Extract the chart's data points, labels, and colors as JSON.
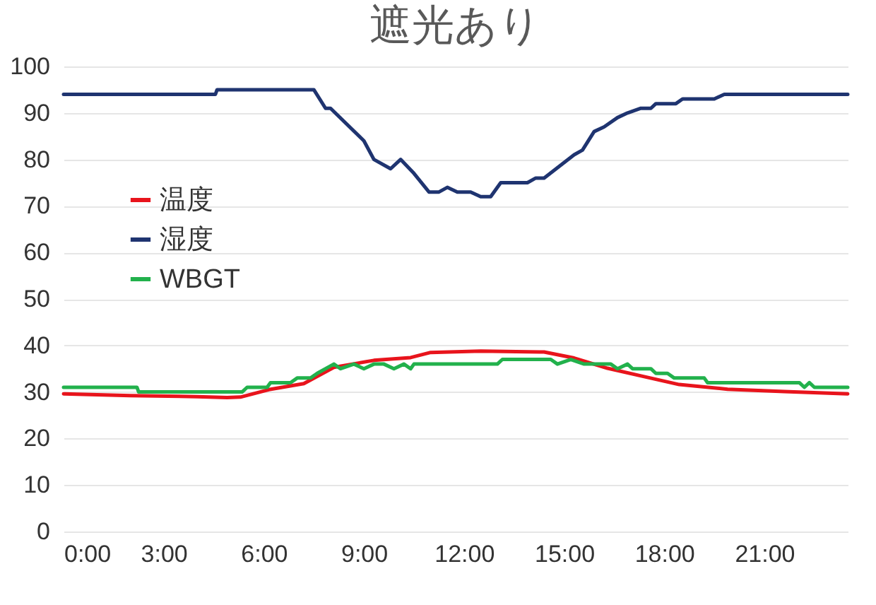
{
  "chart_data": {
    "type": "line",
    "title": "遮光あり",
    "xlim": [
      0,
      23.5
    ],
    "ylim": [
      0,
      100
    ],
    "xticks": [
      {
        "value": 0,
        "label": "0:00"
      },
      {
        "value": 3,
        "label": "3:00"
      },
      {
        "value": 6,
        "label": "6:00"
      },
      {
        "value": 9,
        "label": "9:00"
      },
      {
        "value": 12,
        "label": "12:00"
      },
      {
        "value": 15,
        "label": "15:00"
      },
      {
        "value": 18,
        "label": "18:00"
      },
      {
        "value": 21,
        "label": "21:00"
      }
    ],
    "yticks": [
      0,
      10,
      20,
      30,
      40,
      50,
      60,
      70,
      80,
      90,
      100
    ],
    "grid": "y",
    "legend": "top left",
    "marker": "none",
    "line_style": "solid",
    "series": [
      {
        "name": "温度",
        "color": "#e8141c",
        "x": [
          0,
          2,
          4,
          4.9,
          5.3,
          6.15,
          7.2,
          8.1,
          9.3,
          10.4,
          11,
          12.5,
          14.4,
          15.3,
          16.3,
          17.4,
          18.45,
          19.9,
          21.6,
          23.5
        ],
        "values": [
          29.6,
          29.2,
          29,
          28.8,
          28.9,
          30.5,
          31.8,
          35.3,
          36.8,
          37.4,
          38.5,
          38.8,
          38.6,
          37.3,
          35.1,
          33.3,
          31.6,
          30.6,
          30.1,
          29.6
        ]
      },
      {
        "name": "湿度",
        "color": "#1f3470",
        "x": [
          0,
          4.55,
          4.6,
          7.5,
          7.85,
          8,
          9,
          9.3,
          9.8,
          10.1,
          10.5,
          10.95,
          11.25,
          11.5,
          11.8,
          12.2,
          12.5,
          12.8,
          13.1,
          13.9,
          14.15,
          14.4,
          15.3,
          15.55,
          15.9,
          16.2,
          16.6,
          16.9,
          17.3,
          17.6,
          17.75,
          18.35,
          18.55,
          19.5,
          19.8,
          23.5
        ],
        "values": [
          94,
          94,
          95,
          95,
          91,
          91,
          84,
          80,
          78,
          80,
          77,
          73,
          73,
          74,
          73,
          73,
          72,
          72,
          75,
          75,
          76,
          76,
          81,
          82,
          86,
          87,
          89,
          90,
          91,
          91,
          92,
          92,
          93,
          93,
          94,
          94
        ]
      },
      {
        "name": "WBGT",
        "color": "#22b14c",
        "x": [
          0,
          2.2,
          2.25,
          5.35,
          5.5,
          6.1,
          6.2,
          6.8,
          7,
          7.4,
          7.6,
          8.1,
          8.3,
          8.7,
          9,
          9.3,
          9.6,
          9.9,
          10.2,
          10.4,
          10.5,
          13,
          13.15,
          14.6,
          14.8,
          15.2,
          15.6,
          16.4,
          16.6,
          16.9,
          17.05,
          17.6,
          17.75,
          18.1,
          18.3,
          19.2,
          19.3,
          22.05,
          22.2,
          22.35,
          22.5,
          23.5
        ],
        "values": [
          31,
          31,
          30,
          30,
          31,
          31,
          32,
          32,
          33,
          33,
          34,
          36,
          35,
          36,
          35,
          36,
          36,
          35,
          36,
          35,
          36,
          36,
          37,
          37,
          36,
          37,
          36,
          36,
          35,
          36,
          35,
          35,
          34,
          34,
          33,
          33,
          32,
          32,
          31,
          32,
          31,
          31
        ]
      }
    ]
  }
}
